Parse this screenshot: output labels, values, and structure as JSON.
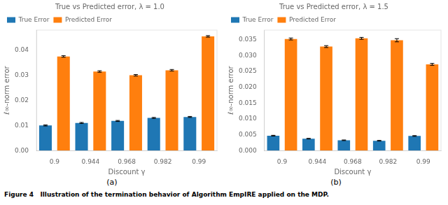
{
  "chart_data": [
    {
      "type": "bar",
      "title": "True vs Predicted error, λ = 1.0",
      "caption": "(a)",
      "xlabel": "Discount γ",
      "ylabel": "ℓ∞-norm error",
      "categories": [
        "0.9",
        "0.944",
        "0.968",
        "0.982",
        "0.99"
      ],
      "series": [
        {
          "name": "True Error",
          "color": "#1f77b4",
          "values": [
            0.01,
            0.011,
            0.0118,
            0.013,
            0.0134
          ],
          "errors": [
            0.0002,
            0.0002,
            0.0002,
            0.0002,
            0.0002
          ]
        },
        {
          "name": "Predicted Error",
          "color": "#ff7f0e",
          "values": [
            0.0375,
            0.0315,
            0.03,
            0.032,
            0.0455
          ],
          "errors": [
            0.0003,
            0.0003,
            0.0003,
            0.0003,
            0.0003
          ]
        }
      ],
      "ylim": [
        0,
        0.048
      ],
      "yticks": [
        {
          "value": 0,
          "label": "0.00"
        },
        0.01,
        0.02,
        0.03,
        0.04
      ],
      "legend": "upper left",
      "grid": false
    },
    {
      "type": "bar",
      "title": "True vs Predicted error, λ = 1.5",
      "caption": "(b)",
      "xlabel": "Discount γ",
      "ylabel": "ℓ∞-norm error",
      "categories": [
        "0.9",
        "0.944",
        "0.968",
        "0.982",
        "0.99"
      ],
      "series": [
        {
          "name": "True Error",
          "color": "#1f77b4",
          "values": [
            0.0047,
            0.00375,
            0.00325,
            0.0031,
            0.0046
          ],
          "errors": [
            0.00012,
            0.0001,
            0.0001,
            0.0001,
            0.00012
          ]
        },
        {
          "name": "Predicted Error",
          "color": "#ff7f0e",
          "values": [
            0.0352,
            0.0328,
            0.0354,
            0.0348,
            0.0272
          ],
          "errors": [
            0.0003,
            0.0003,
            0.0003,
            0.0005,
            0.0003
          ]
        }
      ],
      "ylim": [
        0,
        0.038
      ],
      "yticks": [
        {
          "value": 0,
          "label": "0.000"
        },
        0.005,
        {
          "value": 0.01,
          "label": "0.010"
        },
        0.015,
        {
          "value": 0.02,
          "label": "0.020"
        },
        0.025,
        {
          "value": 0.03,
          "label": "0.030"
        },
        0.035
      ],
      "legend": "upper left",
      "grid": false
    }
  ],
  "caption": "Figure 4   Illustration of the termination behavior of Algorithm EmpIRE applied on the MDP."
}
